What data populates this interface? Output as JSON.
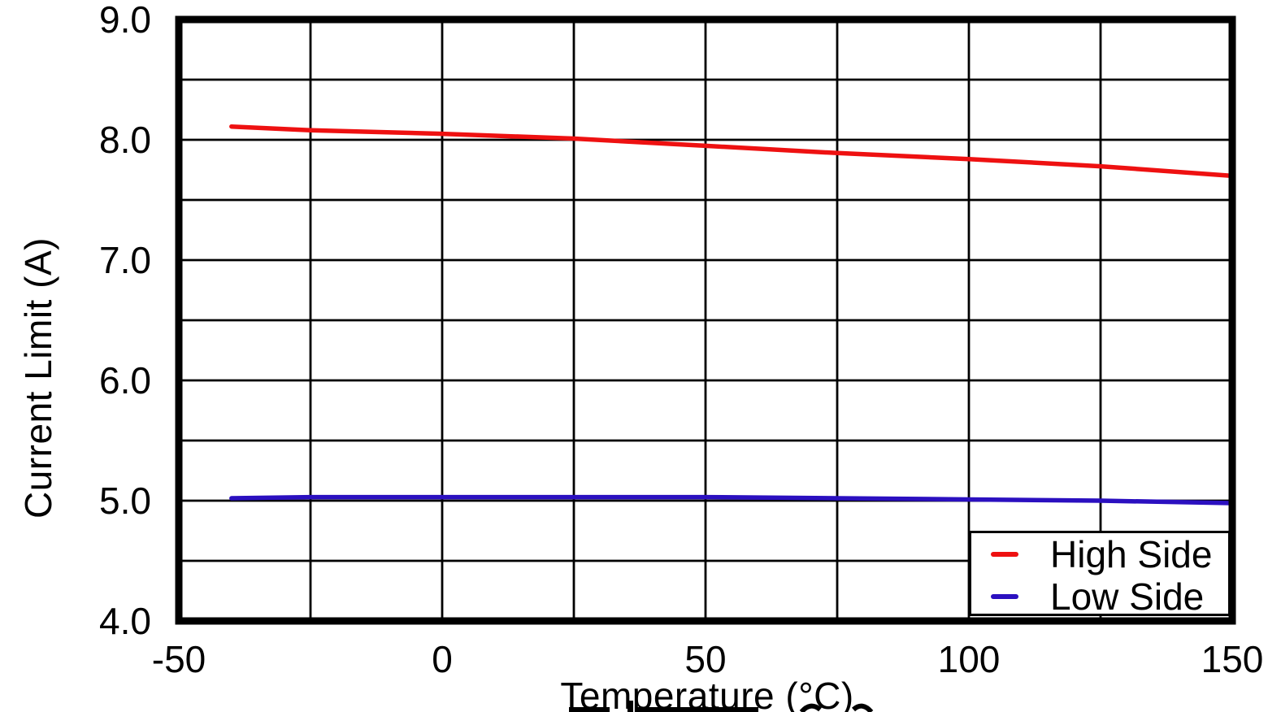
{
  "page": {
    "background_color": "#FFFFFF",
    "text_color": "#000000"
  },
  "chart_data": {
    "type": "line",
    "title": "",
    "xlabel": "Temperature (°C)",
    "ylabel": "Current Limit (A)",
    "xlim": [
      -50,
      150
    ],
    "ylim": [
      4.0,
      9.0
    ],
    "x_minor_step": 25,
    "y_minor_step": 0.5,
    "x_major_ticks": [
      -50,
      0,
      50,
      100,
      150
    ],
    "x_tick_labels": [
      "-50",
      "0",
      "50",
      "100",
      "150"
    ],
    "y_major_ticks": [
      4.0,
      5.0,
      6.0,
      7.0,
      8.0,
      9.0
    ],
    "y_tick_labels": [
      "4.0",
      "5.0",
      "6.0",
      "7.0",
      "8.0",
      "9.0"
    ],
    "grid": true,
    "grid_color": "#000000",
    "axis_border_color": "#000000",
    "legend_position": "lower right",
    "series": [
      {
        "name": "High Side",
        "color": "#EE1111",
        "x": [
          -40,
          -25,
          0,
          25,
          50,
          75,
          100,
          125,
          150
        ],
        "y": [
          8.11,
          8.08,
          8.05,
          8.01,
          7.95,
          7.89,
          7.84,
          7.78,
          7.7
        ]
      },
      {
        "name": "Low Side",
        "color": "#2B10C0",
        "x": [
          -40,
          -25,
          0,
          25,
          50,
          75,
          100,
          125,
          150
        ],
        "y": [
          5.02,
          5.03,
          5.03,
          5.03,
          5.03,
          5.02,
          5.01,
          5.0,
          4.98
        ]
      }
    ]
  }
}
